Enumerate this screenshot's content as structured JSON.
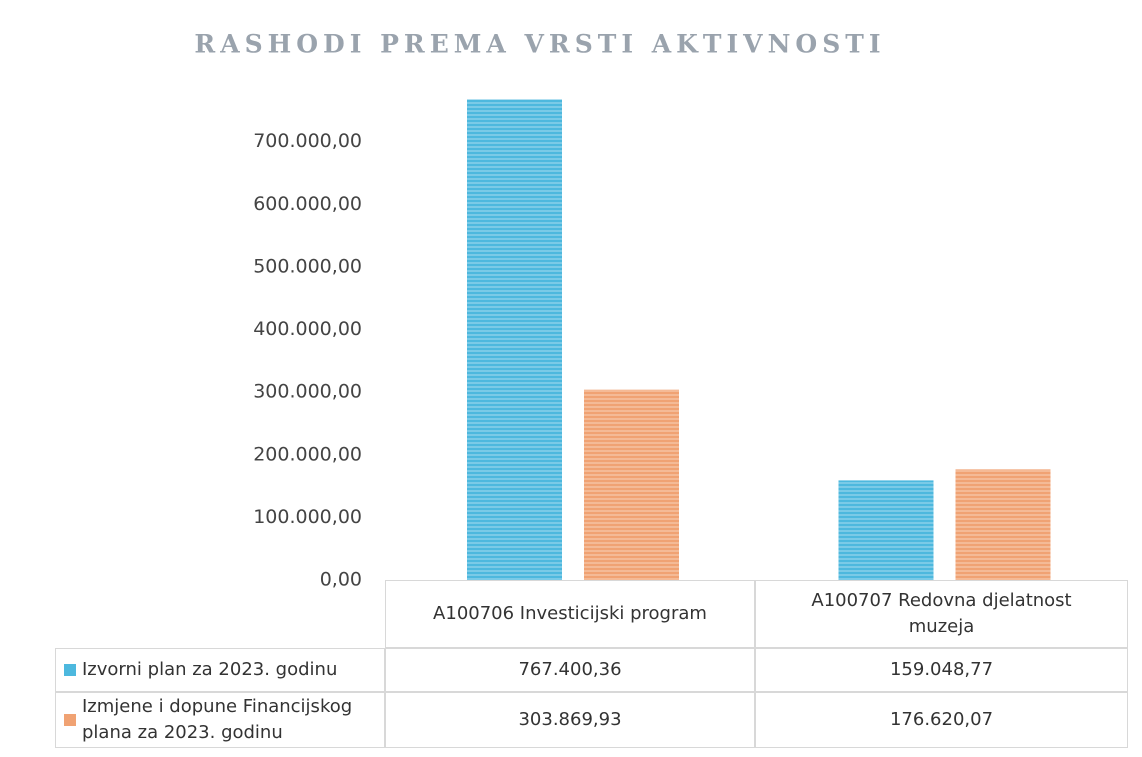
{
  "chart_data": {
    "type": "bar",
    "title": "RASHODI PREMA VRSTI AKTIVNOSTI",
    "categories": [
      "A100706 Investicijski program",
      "A100707 Redovna djelatnost muzeja"
    ],
    "series": [
      {
        "name": "Izvorni plan za 2023. godinu",
        "color": "#4db8de",
        "values": [
          767400.36,
          159048.77
        ],
        "value_labels": [
          "767.400,36",
          "159.048,77"
        ]
      },
      {
        "name": "Izmjene i dopune Financijskog plana za 2023. godinu",
        "color": "#f0a273",
        "values": [
          303869.93,
          176620.07
        ],
        "value_labels": [
          "303.869,93",
          "176.620,07"
        ]
      }
    ],
    "ylim": [
      0,
      800000
    ],
    "yticks": [
      {
        "value": 0,
        "label": "0,00"
      },
      {
        "value": 100000,
        "label": "100.000,00"
      },
      {
        "value": 200000,
        "label": "200.000,00"
      },
      {
        "value": 300000,
        "label": "300.000,00"
      },
      {
        "value": 400000,
        "label": "400.000,00"
      },
      {
        "value": 500000,
        "label": "500.000,00"
      },
      {
        "value": 600000,
        "label": "600.000,00"
      },
      {
        "value": 700000,
        "label": "700.000,00"
      }
    ],
    "grid": false
  }
}
